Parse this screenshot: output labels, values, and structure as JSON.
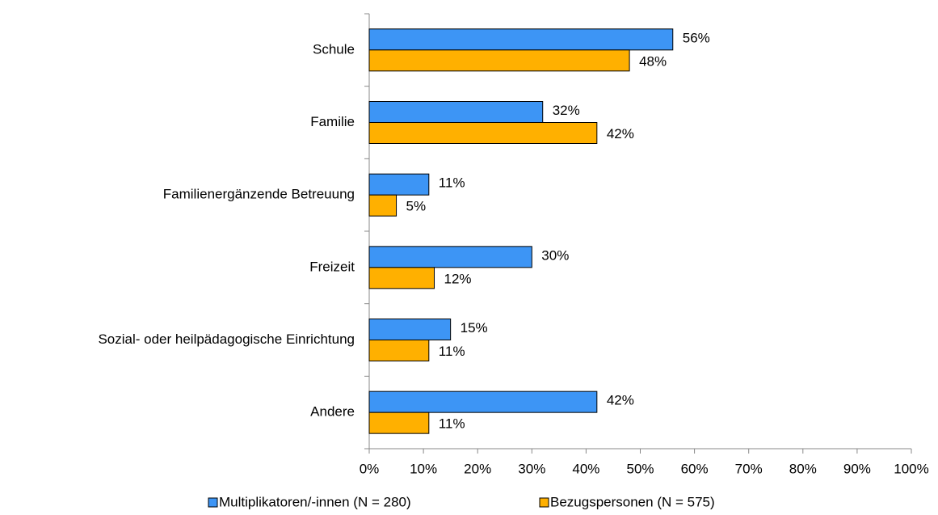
{
  "chart_data": {
    "type": "barh",
    "categories": [
      "Schule",
      "Familie",
      "Familienergänzende Betreuung",
      "Freizeit",
      "Sozial- oder heilpädagogische Einrichtung",
      "Andere"
    ],
    "series": [
      {
        "name": "Multiplikatoren/-innen (N = 280)",
        "color": "#3d95f5",
        "values": [
          56,
          32,
          11,
          30,
          15,
          42
        ],
        "value_labels": [
          "56%",
          "32%",
          "11%",
          "30%",
          "15%",
          "42%"
        ]
      },
      {
        "name": "Bezugspersonen (N = 575)",
        "color": "#ffb000",
        "values": [
          48,
          42,
          5,
          12,
          11,
          11
        ],
        "value_labels": [
          "48%",
          "42%",
          "5%",
          "12%",
          "11%",
          "11%"
        ]
      }
    ],
    "xlim": [
      0,
      100
    ],
    "xticks": [
      {
        "value": 0,
        "label": "0%"
      },
      {
        "value": 10,
        "label": "10%"
      },
      {
        "value": 20,
        "label": "20%"
      },
      {
        "value": 30,
        "label": "30%"
      },
      {
        "value": 40,
        "label": "40%"
      },
      {
        "value": 50,
        "label": "50%"
      },
      {
        "value": 60,
        "label": "60%"
      },
      {
        "value": 70,
        "label": "70%"
      },
      {
        "value": 80,
        "label": "80%"
      },
      {
        "value": 90,
        "label": "90%"
      },
      {
        "value": 100,
        "label": "100%"
      }
    ],
    "legend": "bottom"
  }
}
